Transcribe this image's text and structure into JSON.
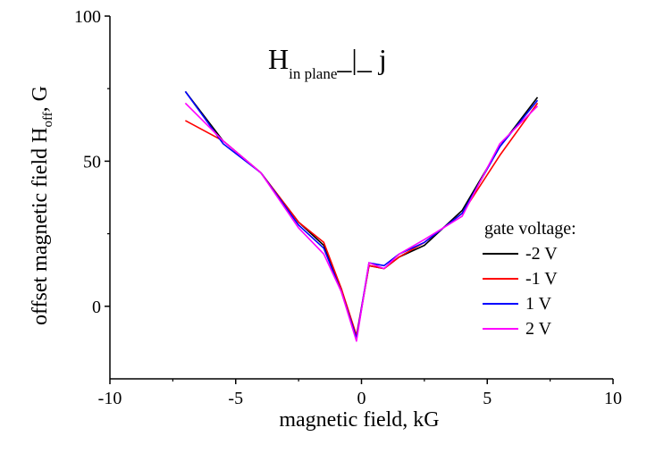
{
  "chart_data": {
    "type": "line",
    "title": "",
    "xlabel": "magnetic field, kG",
    "ylabel_main": "offset magnetic field H",
    "ylabel_sub": "off",
    "ylabel_tail": ", G",
    "xlim": [
      -10,
      10
    ],
    "ylim": [
      -25,
      100
    ],
    "xticks": [
      -10,
      -5,
      0,
      5,
      10
    ],
    "yticks": [
      0,
      50,
      100
    ],
    "grid": false,
    "annotation": {
      "main": "H",
      "sub": "in plane",
      "tail": "_|_ j"
    },
    "legend": {
      "title": "gate voltage:",
      "position": "right"
    },
    "series": [
      {
        "name": "-2 V",
        "color": "#000000",
        "x": [
          -7.0,
          -5.5,
          -4.0,
          -2.5,
          -1.5,
          -0.8,
          -0.2,
          0.3,
          0.9,
          1.5,
          2.5,
          4.0,
          5.5,
          7.0
        ],
        "y": [
          74,
          57,
          46,
          29,
          21,
          6,
          -11,
          14,
          13,
          17,
          21,
          33,
          55,
          72
        ]
      },
      {
        "name": "-1 V",
        "color": "#ff0000",
        "x": [
          -7.0,
          -5.5,
          -4.0,
          -2.5,
          -1.5,
          -0.8,
          -0.2,
          0.3,
          0.9,
          1.5,
          2.5,
          4.0,
          5.5,
          7.0
        ],
        "y": [
          64,
          57,
          46,
          29,
          22,
          6,
          -10,
          14,
          13,
          17,
          22,
          32,
          52,
          70
        ]
      },
      {
        "name": "1 V",
        "color": "#0000ff",
        "x": [
          -7.0,
          -5.5,
          -4.0,
          -2.5,
          -1.5,
          -0.8,
          -0.2,
          0.3,
          0.9,
          1.5,
          2.5,
          4.0,
          5.5,
          7.0
        ],
        "y": [
          74,
          56,
          46,
          28,
          20,
          5,
          -11,
          15,
          14,
          18,
          22,
          32,
          55,
          71
        ]
      },
      {
        "name": "2 V",
        "color": "#ff00ff",
        "x": [
          -7.0,
          -5.5,
          -4.0,
          -2.5,
          -1.5,
          -0.8,
          -0.2,
          0.3,
          0.9,
          1.5,
          2.5,
          4.0,
          5.5,
          7.0
        ],
        "y": [
          70,
          57,
          46,
          27,
          18,
          5,
          -12,
          15,
          13,
          18,
          23,
          31,
          56,
          69
        ]
      }
    ]
  }
}
